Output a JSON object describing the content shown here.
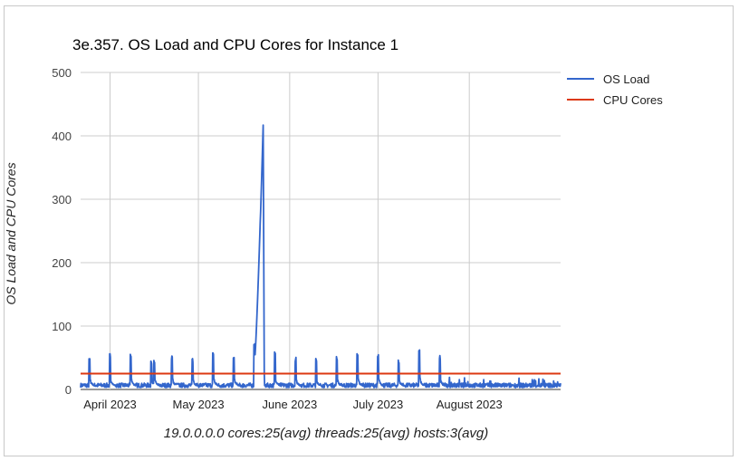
{
  "chart_data": {
    "type": "line",
    "title": "3e.357. OS Load and CPU Cores for Instance 1",
    "ylabel": "OS Load and CPU Cores",
    "xlabel": "",
    "caption": "19.0.0.0.0 cores:25(avg) threads:25(avg) hosts:3(avg)",
    "ylim": [
      0,
      500
    ],
    "yticks": [
      0,
      100,
      200,
      300,
      400,
      500
    ],
    "x_start": "2023-03-22",
    "x_end": "2023-09-01",
    "xticks": [
      {
        "date": "2023-04-01",
        "label": "April 2023"
      },
      {
        "date": "2023-05-01",
        "label": "May 2023"
      },
      {
        "date": "2023-06-01",
        "label": "June 2023"
      },
      {
        "date": "2023-07-01",
        "label": "July 2023"
      },
      {
        "date": "2023-08-01",
        "label": "August 2023"
      }
    ],
    "legend": "right",
    "series": [
      {
        "name": "OS Load",
        "color": "#3366cc",
        "baseline": 5,
        "peaks": [
          {
            "date": "2023-03-25",
            "value": 49
          },
          {
            "date": "2023-04-01",
            "value": 57
          },
          {
            "date": "2023-04-08",
            "value": 56
          },
          {
            "date": "2023-04-15",
            "value": 47
          },
          {
            "date": "2023-04-16",
            "value": 46
          },
          {
            "date": "2023-04-22",
            "value": 55
          },
          {
            "date": "2023-04-29",
            "value": 50
          },
          {
            "date": "2023-05-06",
            "value": 59
          },
          {
            "date": "2023-05-13",
            "value": 52
          },
          {
            "date": "2023-05-20",
            "value": 80
          },
          {
            "date": "2023-05-23",
            "value": 417
          },
          {
            "date": "2023-05-27",
            "value": 62
          },
          {
            "date": "2023-06-03",
            "value": 52
          },
          {
            "date": "2023-06-10",
            "value": 49
          },
          {
            "date": "2023-06-17",
            "value": 53
          },
          {
            "date": "2023-06-24",
            "value": 57
          },
          {
            "date": "2023-07-01",
            "value": 56
          },
          {
            "date": "2023-07-08",
            "value": 47
          },
          {
            "date": "2023-07-15",
            "value": 64
          },
          {
            "date": "2023-07-22",
            "value": 56
          }
        ]
      },
      {
        "name": "CPU Cores",
        "color": "#dc3912",
        "value": 25
      }
    ]
  }
}
